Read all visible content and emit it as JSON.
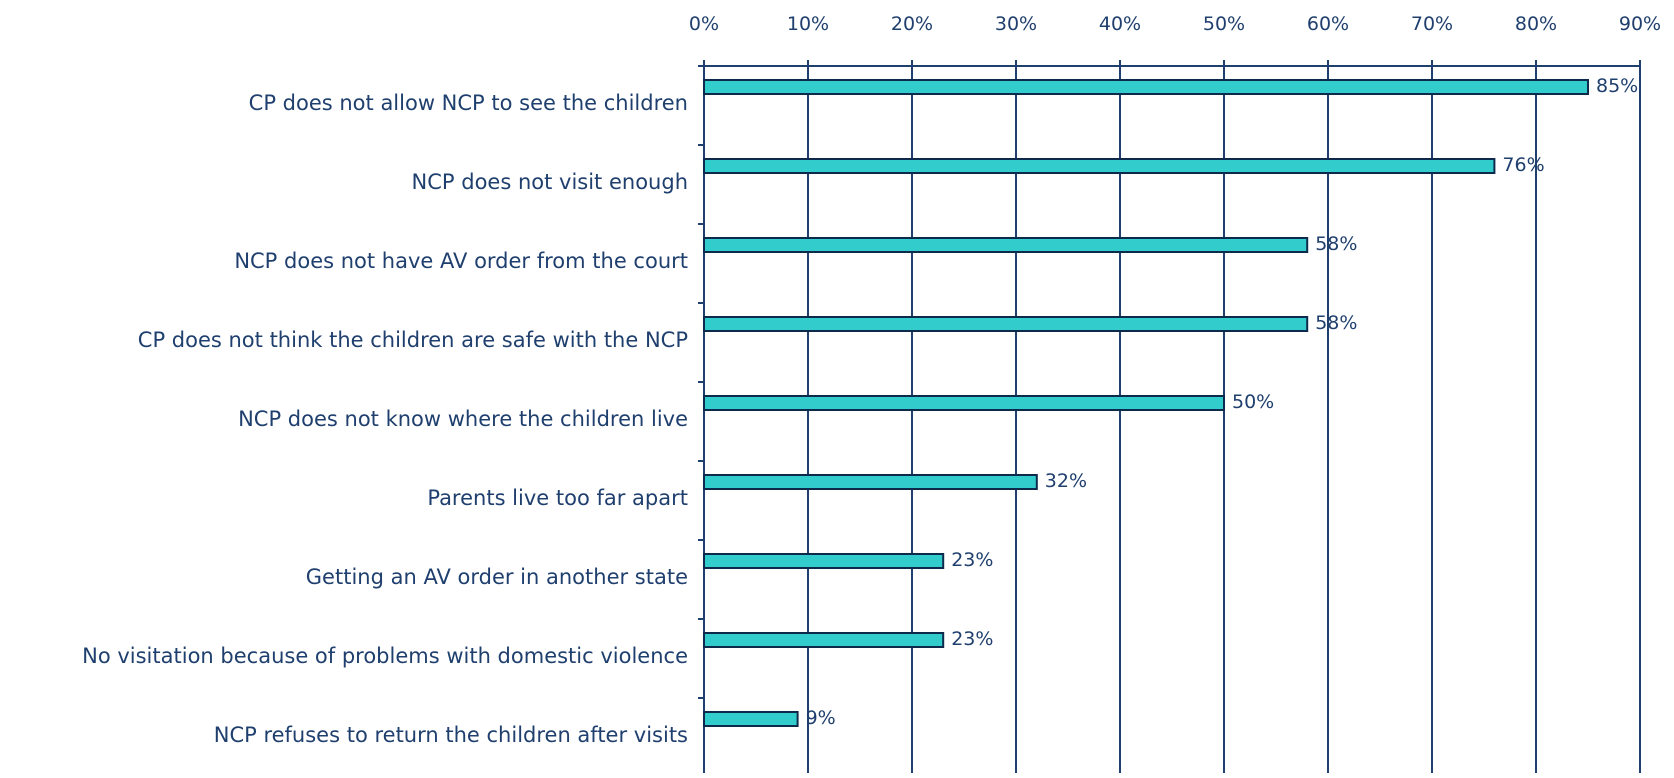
{
  "chart_data": {
    "type": "bar",
    "orientation": "horizontal",
    "categories": [
      "CP does not allow NCP to see the children",
      "NCP does not visit enough",
      "NCP does not have AV order from the court",
      "CP does not think the children are safe with the NCP",
      "NCP does not know where the children live",
      "Parents live too far apart",
      "Getting an AV order in another state",
      "No visitation because of problems with domestic violence",
      "NCP refuses to return the children after visits"
    ],
    "values": [
      85,
      76,
      58,
      58,
      50,
      32,
      23,
      23,
      9
    ],
    "data_labels": [
      "85%",
      "76%",
      "58%",
      "58%",
      "50%",
      "32%",
      "23%",
      "23%",
      "9%"
    ],
    "x_ticks": [
      0,
      10,
      20,
      30,
      40,
      50,
      60,
      70,
      80,
      90
    ],
    "x_tick_labels": [
      "0%",
      "10%",
      "20%",
      "30%",
      "40%",
      "50%",
      "60%",
      "70%",
      "80%",
      "90%"
    ],
    "xlim": [
      0,
      90
    ],
    "x_axis_position": "top",
    "grid": true,
    "title": "",
    "xlabel": "",
    "ylabel": "",
    "colors": {
      "bar_fill": "#33cccc",
      "bar_stroke": "#0d2a4d",
      "gridline": "#1f3f6e",
      "text": "#1f3f6e"
    }
  }
}
